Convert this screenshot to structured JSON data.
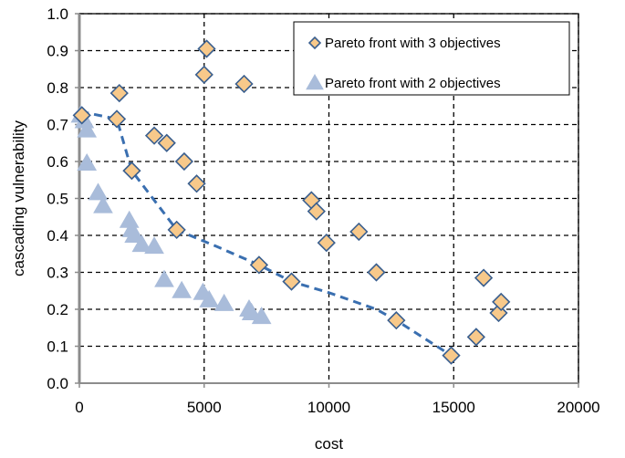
{
  "chart_data": {
    "type": "scatter",
    "xlabel": "cost",
    "ylabel": "cascading vulnerability",
    "xlim": [
      0,
      20000
    ],
    "ylim": [
      0,
      1.0
    ],
    "x_ticks": [
      0,
      5000,
      10000,
      15000,
      20000
    ],
    "y_ticks": [
      0.0,
      0.1,
      0.2,
      0.3,
      0.4,
      0.5,
      0.6,
      0.7,
      0.8,
      0.9,
      1.0
    ],
    "x_tick_labels": [
      "0",
      "5000",
      "10000",
      "15000",
      "20000"
    ],
    "y_tick_labels": [
      "0.0",
      "0.1",
      "0.2",
      "0.3",
      "0.4",
      "0.5",
      "0.6",
      "0.7",
      "0.8",
      "0.9",
      "1.0"
    ],
    "grid": "dashed",
    "legend_position": "top-right",
    "series": [
      {
        "name": "Pareto front with 3 objectives",
        "marker": "diamond",
        "color": "#F8C98A",
        "edge_color": "#3A5F8F",
        "x": [
          100,
          1500,
          1600,
          2100,
          3000,
          3500,
          3900,
          4200,
          4700,
          5000,
          5100,
          6600,
          7200,
          8500,
          9300,
          9500,
          9900,
          11200,
          11900,
          12700,
          14900,
          15900,
          16200,
          16800,
          16900
        ],
        "y": [
          0.725,
          0.715,
          0.785,
          0.575,
          0.67,
          0.65,
          0.415,
          0.6,
          0.54,
          0.835,
          0.905,
          0.81,
          0.32,
          0.275,
          0.495,
          0.465,
          0.38,
          0.41,
          0.3,
          0.17,
          0.075,
          0.125,
          0.285,
          0.19,
          0.22
        ]
      },
      {
        "name": "Pareto front with 2 objectives",
        "marker": "triangle",
        "color": "#A9BCDA",
        "edge_color": "#A9BCDA",
        "x": [
          50,
          200,
          300,
          300,
          750,
          950,
          2000,
          2100,
          2200,
          2500,
          3000,
          3400,
          4100,
          4950,
          5200,
          5800,
          6800,
          6900,
          7300
        ],
        "y": [
          0.725,
          0.71,
          0.685,
          0.595,
          0.515,
          0.48,
          0.44,
          0.415,
          0.4,
          0.375,
          0.37,
          0.28,
          0.25,
          0.245,
          0.225,
          0.215,
          0.2,
          0.19,
          0.18
        ]
      }
    ],
    "trend_line": {
      "style": "dashed",
      "color": "#3A6FB0",
      "x": [
        50,
        1500,
        2100,
        3900,
        5500,
        7200,
        8500,
        10000,
        11900,
        12700,
        14900
      ],
      "y": [
        0.735,
        0.715,
        0.575,
        0.415,
        0.37,
        0.32,
        0.275,
        0.245,
        0.2,
        0.17,
        0.075
      ]
    }
  }
}
